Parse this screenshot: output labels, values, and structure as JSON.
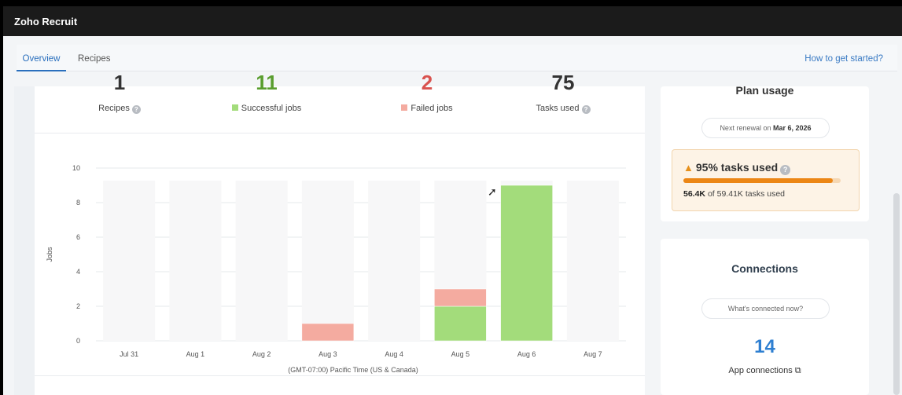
{
  "app": {
    "title": "Zoho Recruit"
  },
  "tabs": [
    {
      "label": "Overview",
      "active": true
    },
    {
      "label": "Recipes",
      "active": false
    }
  ],
  "help_link": "How to get started?",
  "stats": [
    {
      "value": "1",
      "label": "Recipes",
      "has_help": true,
      "color": "#333333"
    },
    {
      "value": "11",
      "label": "Successful jobs",
      "swatch": "#a3dc7b",
      "color": "#5a9e2f"
    },
    {
      "value": "2",
      "label": "Failed jobs",
      "swatch": "#f4aba0",
      "color": "#d9534f"
    },
    {
      "value": "75",
      "label": "Tasks used",
      "has_help": true,
      "color": "#333333"
    }
  ],
  "chart_data": {
    "type": "bar",
    "stacked": true,
    "categories": [
      "Jul 31",
      "Aug 1",
      "Aug 2",
      "Aug 3",
      "Aug 4",
      "Aug 5",
      "Aug 6",
      "Aug 7"
    ],
    "series": [
      {
        "name": "Successful jobs",
        "values": [
          0,
          0,
          0,
          0,
          0,
          2,
          9,
          0
        ],
        "color": "#a3dc7b"
      },
      {
        "name": "Failed jobs",
        "values": [
          0,
          0,
          0,
          1,
          0,
          1,
          0,
          0
        ],
        "color": "#f4aba0"
      }
    ],
    "ylabel": "Jobs",
    "xlabel": "(GMT-07:00) Pacific Time (US & Canada)",
    "ylim": [
      0,
      10
    ],
    "yticks": [
      0,
      2,
      4,
      6,
      8,
      10
    ],
    "grid": true
  },
  "plan": {
    "title": "Plan usage",
    "renewal_prefix": "Next renewal on",
    "renewal_date": "Mar 6, 2026",
    "percent_label": "95%",
    "percent_suffix": "tasks used",
    "fill_fraction": 0.95,
    "used": "56.4K",
    "of_text": "of 59.41K tasks used"
  },
  "connections": {
    "title": "Connections",
    "pill": "What's connected now?",
    "count": "14",
    "label": "App connections"
  }
}
